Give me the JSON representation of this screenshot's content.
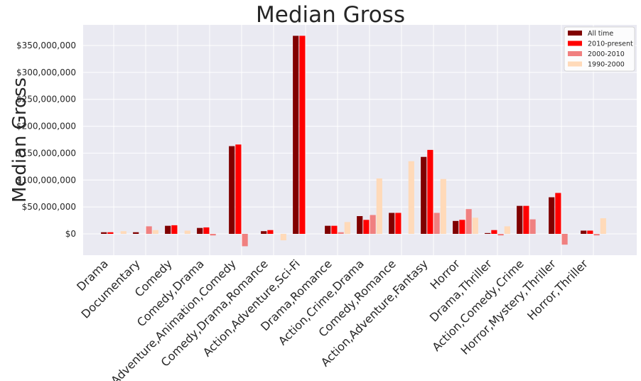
{
  "chart_data": {
    "type": "bar",
    "title": "Median Gross",
    "xlabel": "",
    "ylabel": "Median Gross",
    "ylim": [
      -40000000,
      390000000
    ],
    "yticks": [
      0,
      50000000,
      100000000,
      150000000,
      200000000,
      250000000,
      300000000,
      350000000
    ],
    "ytick_labels": [
      "$0",
      "$50,000,000",
      "$100,000,000",
      "$150,000,000",
      "$200,000,000",
      "$250,000,000",
      "$300,000,000",
      "$350,000,000"
    ],
    "grid": true,
    "legend_position": "top-right",
    "categories": [
      "Drama",
      "Documentary",
      "Comedy",
      "Comedy,Drama",
      "Adventure,Animation,Comedy",
      "Comedy,Drama,Romance",
      "Action,Adventure,Sci-Fi",
      "Drama,Romance",
      "Action,Crime,Drama",
      "Comedy,Romance",
      "Action,Adventure,Fantasy",
      "Horror",
      "Drama,Thriller",
      "Action,Comedy,Crime",
      "Horror,Mystery,Thriller",
      "Horror,Thriller"
    ],
    "series": [
      {
        "name": "All time",
        "color": "#800000",
        "values": [
          3000000,
          3000000,
          15000000,
          11000000,
          163000000,
          5000000,
          368000000,
          15000000,
          33000000,
          39000000,
          143000000,
          24000000,
          1500000,
          52000000,
          68000000,
          6000000
        ]
      },
      {
        "name": "2010-present",
        "color": "#ff0000",
        "values": [
          3000000,
          0,
          16000000,
          12000000,
          166000000,
          7000000,
          368000000,
          15000000,
          26000000,
          39000000,
          156000000,
          26000000,
          7000000,
          52000000,
          76000000,
          6000000
        ]
      },
      {
        "name": "2000-2010",
        "color": "#f08080",
        "values": [
          0,
          14000000,
          0,
          -3000000,
          -23000000,
          0,
          0,
          3000000,
          35000000,
          0,
          39000000,
          46000000,
          -3000000,
          27000000,
          -20000000,
          -3000000
        ]
      },
      {
        "name": "1990-2000",
        "color": "#ffdab9",
        "values": [
          5000000,
          7000000,
          6000000,
          0,
          0,
          -12000000,
          0,
          22000000,
          103000000,
          135000000,
          102000000,
          30000000,
          14000000,
          0,
          0,
          29000000
        ]
      }
    ]
  }
}
